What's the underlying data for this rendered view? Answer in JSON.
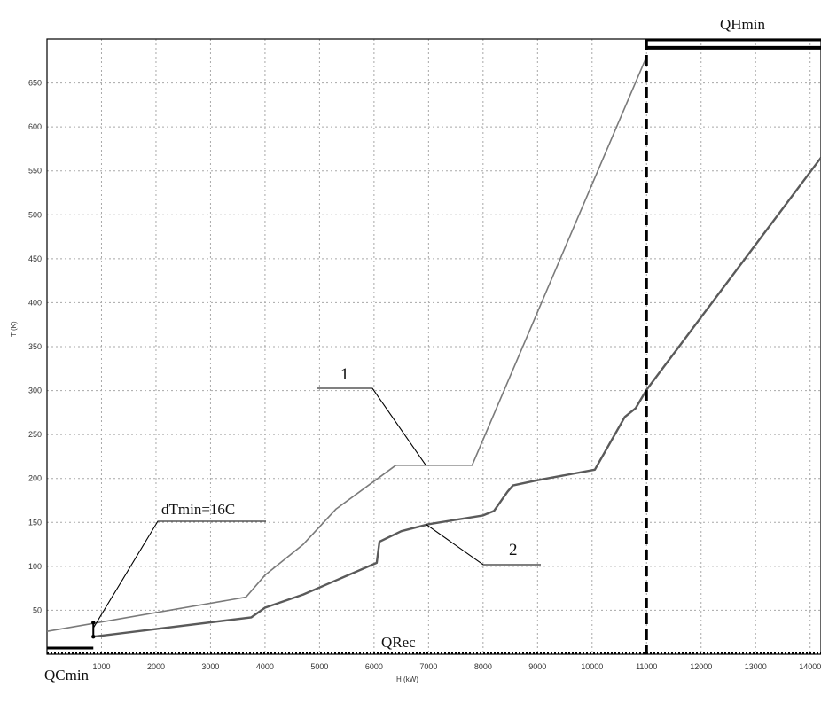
{
  "chart_data": {
    "type": "line",
    "xlabel": "H (kW)",
    "ylabel": "T (K)",
    "xlim": [
      0,
      14200
    ],
    "ylim": [
      0,
      700
    ],
    "x_ticks": [
      1000,
      2000,
      3000,
      4000,
      5000,
      6000,
      7000,
      8000,
      9000,
      10000,
      11000,
      12000,
      13000,
      14000
    ],
    "x_tick_labels": [
      "1000",
      "2000",
      "3000",
      "4000",
      "5000",
      "6000",
      "7000",
      "8000",
      "9000",
      "10000",
      "11000",
      "12000",
      "13000",
      "14000"
    ],
    "y_ticks": [
      50,
      100,
      150,
      200,
      250,
      300,
      350,
      400,
      450,
      500,
      550,
      600,
      650
    ],
    "y_tick_labels": [
      "50",
      "100",
      "150",
      "200",
      "250",
      "300",
      "350",
      "400",
      "450",
      "500",
      "550",
      "600",
      "650"
    ],
    "grid": true,
    "series": [
      {
        "name": "1",
        "color": "#7a7a7a",
        "x": [
          0,
          3650,
          4000,
          4700,
          5300,
          6400,
          6950,
          7800,
          11000
        ],
        "y": [
          26,
          65,
          90,
          125,
          165,
          215,
          215,
          215,
          680
        ]
      },
      {
        "name": "2",
        "color": "#5a5a5a",
        "x": [
          850,
          3750,
          4000,
          4700,
          6050,
          6100,
          6500,
          7000,
          8000,
          8200,
          8450,
          8550,
          9000,
          10050,
          10600,
          10800,
          11000,
          14200
        ],
        "y": [
          20,
          42,
          53,
          68,
          104,
          128,
          140,
          148,
          158,
          163,
          185,
          192,
          198,
          210,
          270,
          280,
          301,
          565
        ]
      }
    ],
    "shaded_segments": [
      {
        "label": "QHmin",
        "x": [
          11000,
          14200
        ],
        "y": [
          690,
          690
        ]
      },
      {
        "label": "QCmin",
        "x": [
          0,
          850
        ],
        "y": [
          7,
          7
        ]
      }
    ],
    "pinch_line": {
      "x": 11000
    },
    "dtmin_marker": {
      "x": 850,
      "y": [
        20,
        36
      ]
    },
    "annotations": [
      {
        "text": "1",
        "point": [
          6950,
          215
        ]
      },
      {
        "text": "2",
        "point": [
          6950,
          148
        ]
      },
      {
        "text": "dTmin=16C",
        "point": [
          850,
          30
        ]
      },
      {
        "text": "QHmin"
      },
      {
        "text": "QRec"
      },
      {
        "text": "QCmin"
      }
    ]
  }
}
